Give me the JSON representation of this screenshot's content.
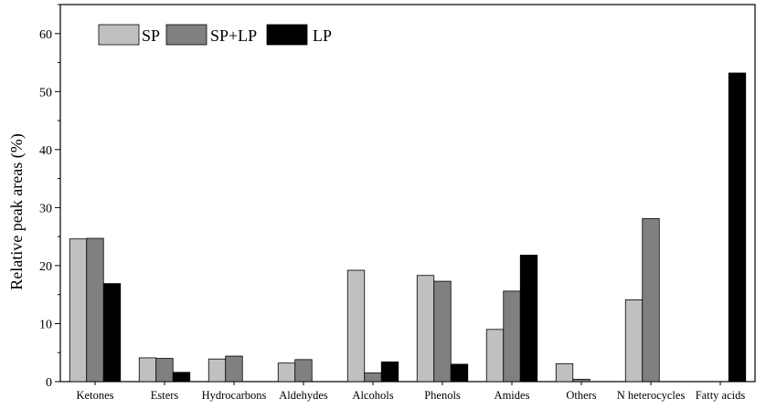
{
  "chart_data": {
    "type": "bar",
    "title": "",
    "xlabel": "",
    "ylabel": "Relative peak areas (%)",
    "ylim": [
      0,
      65
    ],
    "yticks": [
      0,
      10,
      20,
      30,
      40,
      50,
      60
    ],
    "grid": false,
    "legend_position": "top-left",
    "categories": [
      "Ketones",
      "Esters",
      "Hydrocarbons",
      "Aldehydes",
      "Alcohols",
      "Phenols",
      "Amides",
      "Others",
      "N heterocycles",
      "Fatty acids"
    ],
    "series": [
      {
        "name": "SP",
        "color": "#c0c0c0",
        "values": [
          24.6,
          4.1,
          3.9,
          3.2,
          19.2,
          18.3,
          9.0,
          3.1,
          14.1,
          null
        ]
      },
      {
        "name": "SP+LP",
        "color": "#808080",
        "values": [
          24.7,
          4.0,
          4.4,
          3.8,
          1.5,
          17.3,
          15.6,
          0.4,
          28.1,
          null
        ]
      },
      {
        "name": "LP",
        "color": "#000000",
        "values": [
          16.9,
          1.6,
          null,
          null,
          3.4,
          3.0,
          21.8,
          null,
          null,
          53.2
        ]
      }
    ]
  }
}
